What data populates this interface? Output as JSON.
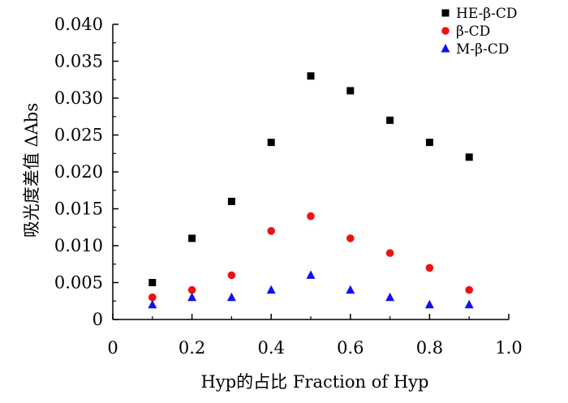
{
  "chart_data": {
    "type": "scatter",
    "title": "",
    "xlabel": "Hyp的占比 Fraction of Hyp",
    "ylabel": "吸光度差值 ΔAbs",
    "xlim": [
      0,
      1.0
    ],
    "ylim": [
      0,
      0.04
    ],
    "x_ticks": [
      "0",
      "0.2",
      "0.4",
      "0.6",
      "0.8",
      "1.0"
    ],
    "x_tick_values": [
      0,
      0.2,
      0.4,
      0.6,
      0.8,
      1.0
    ],
    "y_ticks": [
      "0",
      "0.005",
      "0.010",
      "0.015",
      "0.020",
      "0.025",
      "0.030",
      "0.035",
      "0.040"
    ],
    "y_tick_values": [
      0,
      0.005,
      0.01,
      0.015,
      0.02,
      0.025,
      0.03,
      0.035,
      0.04
    ],
    "grid": false,
    "legend_position": "top-right",
    "x": [
      0.1,
      0.2,
      0.3,
      0.4,
      0.5,
      0.6,
      0.7,
      0.8,
      0.9
    ],
    "series": [
      {
        "name": "HE-β-CD",
        "marker": "square",
        "color": "#000000",
        "values": [
          0.005,
          0.011,
          0.016,
          0.024,
          0.033,
          0.031,
          0.027,
          0.024,
          0.022
        ]
      },
      {
        "name": "β-CD",
        "marker": "circle",
        "color": "#ee1111",
        "values": [
          0.003,
          0.004,
          0.006,
          0.012,
          0.014,
          0.011,
          0.009,
          0.007,
          0.004
        ]
      },
      {
        "name": "M-β-CD",
        "marker": "triangle",
        "color": "#1111ee",
        "values": [
          0.002,
          0.003,
          0.003,
          0.004,
          0.006,
          0.004,
          0.003,
          0.002,
          0.002
        ]
      }
    ]
  }
}
